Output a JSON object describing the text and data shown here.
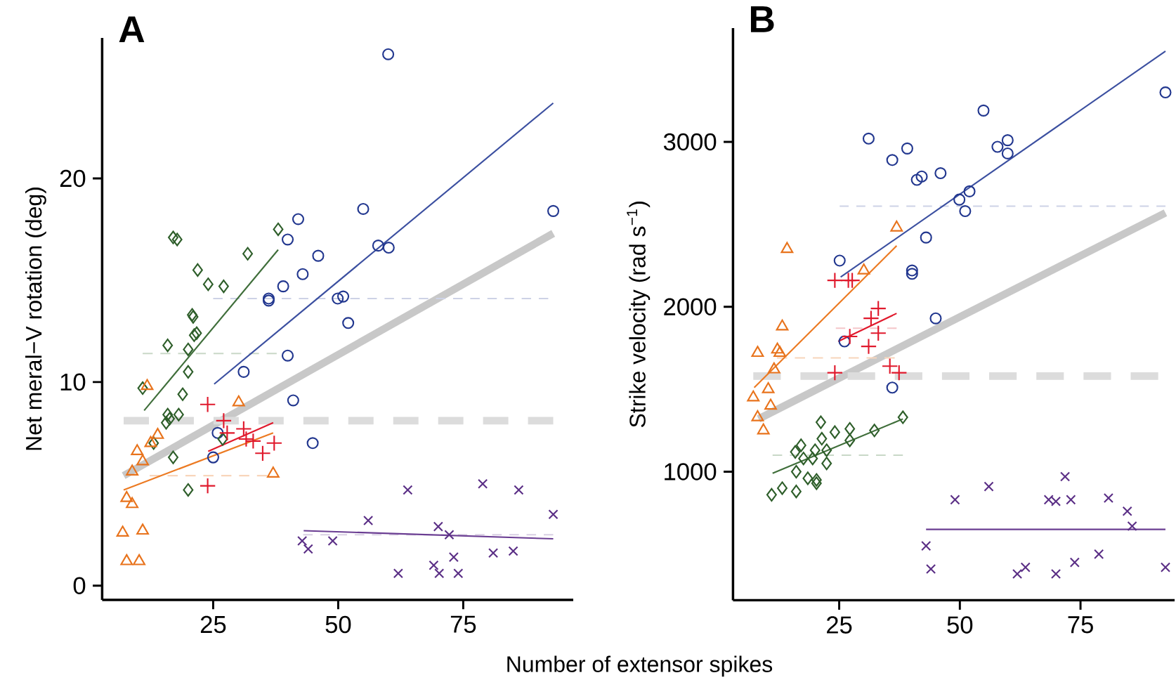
{
  "chart_data": [
    {
      "type": "scatter",
      "title": "A",
      "xlabel": "Number of extensor spikes",
      "ylabel": "Net meral−V rotation (deg)",
      "xlim": [
        2.8,
        97
      ],
      "ylim": [
        -0.7,
        26.9
      ],
      "xticks": [
        25,
        50,
        75
      ],
      "yticks": [
        0,
        10,
        20
      ],
      "series": [
        {
          "type": "line",
          "color": "#c8c8c8",
          "x": [
            7.1,
            93
          ],
          "values": [
            5.4,
            17.3
          ]
        },
        {
          "type": "line",
          "line_style": "dashed",
          "color": "#dcdcdc",
          "x": [
            7.1,
            93
          ],
          "values": [
            8.1,
            8.1
          ]
        },
        {
          "type": "line",
          "line_style": "dashed",
          "color": "#cdd2e6",
          "x": [
            25,
            92
          ],
          "values": [
            14.1,
            14.1
          ]
        },
        {
          "type": "line",
          "line_style": "dashed",
          "color": "#c9d8c7",
          "x": [
            10.9,
            37.7
          ],
          "values": [
            11.4,
            11.4
          ]
        },
        {
          "type": "line",
          "line_style": "dashed",
          "color": "#f8d5bb",
          "x": [
            12.3,
            35.8
          ],
          "values": [
            5.4,
            5.4
          ]
        },
        {
          "type": "line",
          "line_style": "dashed",
          "color": "#d9cfe3",
          "x": [
            43,
            93
          ],
          "values": [
            2.5,
            2.5
          ]
        },
        {
          "type": "line",
          "color": "#3b4fa0",
          "x": [
            25.2,
            93
          ],
          "values": [
            9.9,
            23.7
          ]
        },
        {
          "type": "line",
          "color": "#3f6e3a",
          "x": [
            11.2,
            38
          ],
          "values": [
            8.6,
            16.5
          ]
        },
        {
          "type": "line",
          "color": "#ec7a22",
          "x": [
            7.1,
            37
          ],
          "values": [
            4.7,
            7.5
          ]
        },
        {
          "type": "line",
          "color": "#e0192c",
          "x": [
            24,
            37
          ],
          "values": [
            6.6,
            8.0
          ]
        },
        {
          "type": "line",
          "color": "#6a3d92",
          "x": [
            43.1,
            93
          ],
          "values": [
            2.7,
            2.3
          ]
        },
        {
          "marker": "circle",
          "color": "#22378f",
          "x": [
            60.0,
            55.0,
            93.0,
            42.0,
            39.9,
            58.0,
            60.1,
            46.0,
            42.9,
            39.0,
            36.1,
            36.1,
            49.9,
            51.0,
            52.0,
            39.9,
            31.1,
            41.0,
            25.9,
            44.9,
            25.0
          ],
          "values": [
            26.1,
            18.5,
            18.4,
            18.0,
            17.0,
            16.7,
            16.6,
            16.2,
            15.3,
            14.7,
            14.1,
            14.0,
            14.1,
            14.2,
            12.9,
            11.3,
            10.5,
            9.1,
            7.5,
            7.0,
            6.3
          ]
        },
        {
          "marker": "diamond",
          "color": "#2e5e2a",
          "x": [
            17.0,
            17.8,
            38.0,
            31.9,
            21.9,
            24.0,
            27.1,
            20.8,
            21.0,
            15.9,
            21.7,
            21.2,
            20.0,
            20.0,
            18.9,
            10.9,
            15.9,
            16.3,
            18.1,
            15.6,
            13.1,
            26.9,
            17.0,
            20.0
          ],
          "values": [
            17.1,
            17.0,
            17.5,
            16.3,
            15.5,
            14.8,
            14.7,
            13.3,
            13.2,
            11.8,
            12.4,
            12.3,
            11.6,
            10.5,
            9.4,
            9.7,
            8.4,
            8.2,
            8.4,
            8.0,
            7.0,
            7.2,
            6.3,
            4.7
          ]
        },
        {
          "marker": "triangle",
          "color": "#e8731c",
          "x": [
            11.8,
            30.1,
            13.9,
            12.5,
            9.8,
            10.9,
            8.8,
            37.0,
            7.7,
            8.8,
            6.9,
            10.9,
            7.7,
            10.2
          ],
          "values": [
            9.8,
            9.0,
            7.4,
            7.0,
            6.6,
            6.1,
            5.6,
            5.5,
            4.3,
            4.0,
            2.6,
            2.7,
            1.2,
            1.2
          ]
        },
        {
          "marker": "plus",
          "color": "#e0192c",
          "x": [
            23.9,
            27.1,
            27.8,
            31.1,
            31.6,
            33.0,
            37.2,
            34.9,
            23.9
          ],
          "values": [
            8.9,
            8.1,
            7.5,
            7.7,
            7.2,
            7.1,
            7.0,
            6.5,
            4.9
          ]
        },
        {
          "marker": "cross",
          "color": "#5b2f86",
          "x": [
            78.9,
            63.9,
            86.1,
            93.0,
            56.0,
            70.0,
            72.2,
            48.9,
            42.8,
            44.0,
            73.1,
            81.0,
            85.0,
            69.1,
            62.0,
            70.2,
            74.0
          ],
          "values": [
            5.0,
            4.7,
            4.7,
            3.5,
            3.2,
            2.9,
            2.5,
            2.2,
            2.2,
            1.8,
            1.4,
            1.6,
            1.7,
            1.0,
            0.6,
            0.6,
            0.6
          ]
        }
      ]
    },
    {
      "type": "scatter",
      "title": "B",
      "ylabel": "Strike velocity (rad s$^{−1}$)",
      "xlim": [
        3,
        94.5
      ],
      "ylim": [
        220,
        3690
      ],
      "xticks": [
        25,
        50,
        75
      ],
      "yticks": [
        1000,
        2000,
        3000
      ],
      "series": [
        {
          "type": "line",
          "color": "#c8c8c8",
          "x": [
            8.3,
            92.6
          ],
          "values": [
            1320,
            2570
          ]
        },
        {
          "type": "line",
          "line_style": "dashed",
          "color": "#dcdcdc",
          "x": [
            7.2,
            91.1
          ],
          "values": [
            1580,
            1580
          ]
        },
        {
          "type": "line",
          "line_style": "dashed",
          "color": "#cdd2e6",
          "x": [
            25.1,
            92.6
          ],
          "values": [
            2610,
            2610
          ]
        },
        {
          "type": "line",
          "line_style": "dashed",
          "color": "#f8d5bb",
          "x": [
            12.1,
            36.5
          ],
          "values": [
            1690,
            1690
          ]
        },
        {
          "type": "line",
          "line_style": "dashed",
          "color": "#f4c6c9",
          "x": [
            24.3,
            36.9
          ],
          "values": [
            1870,
            1870
          ]
        },
        {
          "type": "line",
          "line_style": "dashed",
          "color": "#c9d8c7",
          "x": [
            11.2,
            38.2
          ],
          "values": [
            1100,
            1100
          ]
        },
        {
          "type": "line",
          "color": "#3b4fa0",
          "x": [
            25.3,
            92.6
          ],
          "values": [
            2180,
            3550
          ]
        },
        {
          "type": "line",
          "color": "#ec7a22",
          "x": [
            7.4,
            36.9
          ],
          "values": [
            1510,
            2370
          ]
        },
        {
          "type": "line",
          "color": "#e0192c",
          "x": [
            24.8,
            36.9
          ],
          "values": [
            1790,
            1960
          ]
        },
        {
          "type": "line",
          "color": "#3f6e3a",
          "x": [
            11.2,
            38.2
          ],
          "values": [
            990,
            1320
          ]
        },
        {
          "type": "line",
          "color": "#6a3d92",
          "x": [
            43.0,
            92.6
          ],
          "values": [
            650,
            650
          ]
        },
        {
          "marker": "circle",
          "color": "#22378f",
          "x": [
            92.6,
            54.9,
            31.1,
            59.9,
            39.1,
            57.8,
            59.9,
            36.0,
            46.0,
            41.1,
            42.1,
            52.0,
            49.9,
            51.1,
            43.0,
            25.1,
            40.1,
            40.1,
            45.0,
            26.1,
            36.0
          ],
          "values": [
            3300,
            3190,
            3020,
            3010,
            2960,
            2970,
            2930,
            2890,
            2810,
            2770,
            2790,
            2700,
            2650,
            2580,
            2420,
            2280,
            2220,
            2200,
            1930,
            1790,
            1510
          ]
        },
        {
          "marker": "triangle",
          "color": "#e8731c",
          "x": [
            14.2,
            36.9,
            30.1,
            13.2,
            8.1,
            12.2,
            12.7,
            11.5,
            10.3,
            7.2,
            10.8,
            8.1,
            9.3
          ],
          "values": [
            2350,
            2480,
            2220,
            1880,
            1720,
            1740,
            1720,
            1620,
            1500,
            1450,
            1400,
            1330,
            1250
          ]
        },
        {
          "marker": "plus",
          "color": "#e0192c",
          "x": [
            24.1,
            26.9,
            27.7,
            33.1,
            31.6,
            33.1,
            27.2,
            31.1,
            35.5,
            37.4,
            24.1
          ],
          "values": [
            2160,
            2160,
            2160,
            1990,
            1930,
            1840,
            1820,
            1760,
            1640,
            1600,
            1600
          ]
        },
        {
          "marker": "diamond",
          "color": "#2e5e2a",
          "x": [
            38.2,
            32.3,
            21.2,
            27.2,
            24.1,
            27.2,
            21.4,
            17.1,
            15.9,
            20.0,
            22.4,
            17.6,
            19.5,
            22.4,
            16.1,
            18.5,
            20.3,
            20.3,
            11.0,
            13.2,
            16.1
          ],
          "values": [
            1330,
            1250,
            1300,
            1260,
            1240,
            1190,
            1200,
            1160,
            1120,
            1130,
            1130,
            1080,
            1080,
            1050,
            1000,
            960,
            950,
            930,
            860,
            900,
            880
          ]
        },
        {
          "marker": "cross",
          "color": "#5b2f86",
          "x": [
            71.8,
            56.0,
            49.0,
            68.4,
            69.9,
            73.0,
            80.8,
            84.7,
            85.7,
            43.0,
            44.0,
            63.6,
            61.9,
            69.9,
            73.8,
            78.8,
            92.6
          ],
          "values": [
            970,
            910,
            830,
            830,
            820,
            830,
            840,
            760,
            670,
            550,
            410,
            420,
            380,
            380,
            450,
            500,
            420
          ]
        }
      ]
    }
  ]
}
